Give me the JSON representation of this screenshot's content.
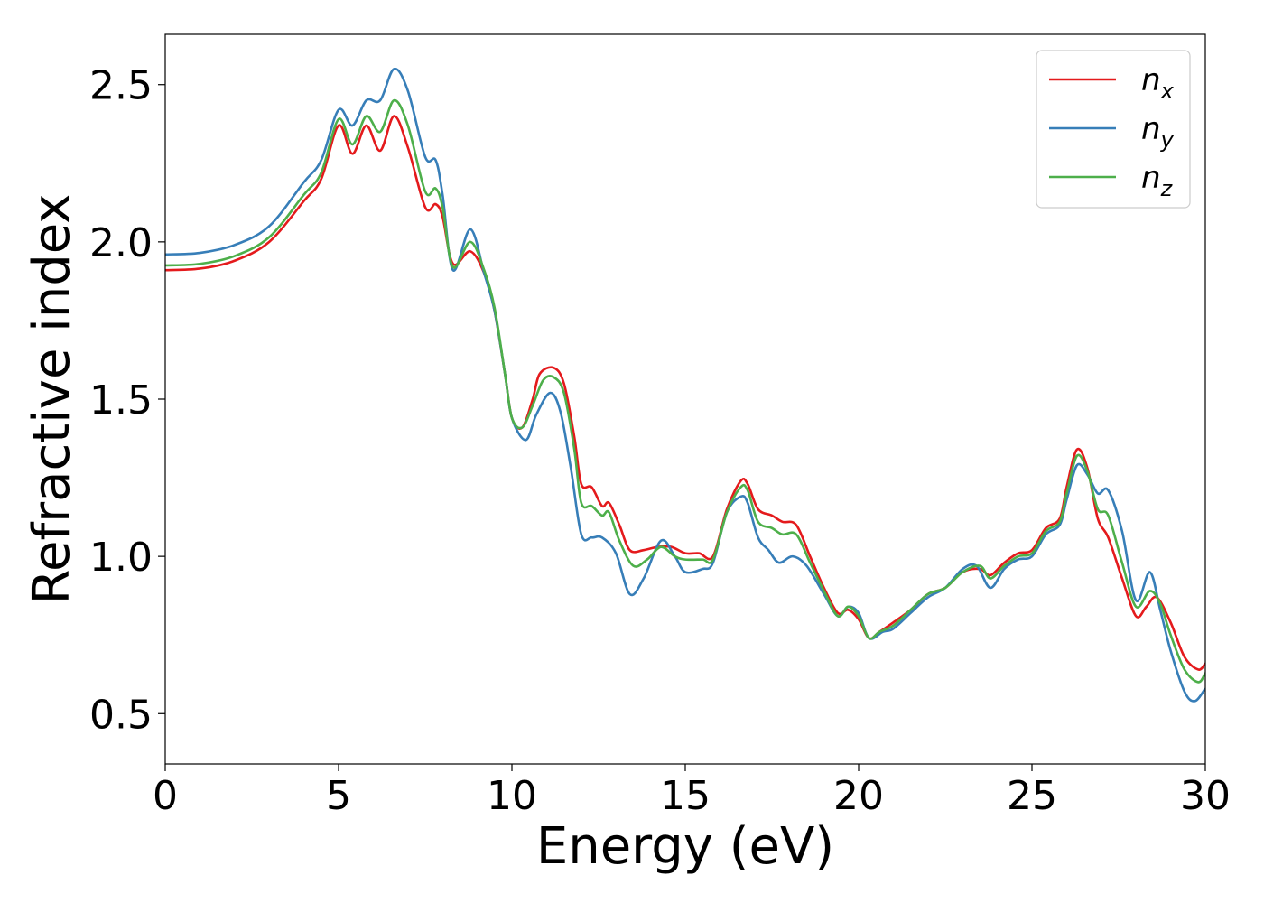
{
  "chart_data": {
    "type": "line",
    "title": "",
    "xlabel": "Energy (eV)",
    "ylabel": "Refractive index",
    "xlim": [
      0,
      30
    ],
    "ylim": [
      0.34,
      2.66
    ],
    "xticks": [
      0,
      5,
      10,
      15,
      20,
      25,
      30
    ],
    "yticks": [
      0.5,
      1.0,
      1.5,
      2.0,
      2.5
    ],
    "xtick_labels": [
      "0",
      "5",
      "10",
      "15",
      "20",
      "25",
      "30"
    ],
    "ytick_labels": [
      "0.5",
      "1.0",
      "1.5",
      "2.0",
      "2.5"
    ],
    "grid": false,
    "legend_position": "top-right",
    "series": [
      {
        "name": "n",
        "subscript": "x",
        "color": "#e41a1c",
        "points": [
          [
            0,
            1.91
          ],
          [
            1,
            1.915
          ],
          [
            2,
            1.94
          ],
          [
            3,
            2.0
          ],
          [
            4,
            2.13
          ],
          [
            4.5,
            2.2
          ],
          [
            5,
            2.37
          ],
          [
            5.4,
            2.28
          ],
          [
            5.8,
            2.37
          ],
          [
            6.2,
            2.29
          ],
          [
            6.6,
            2.4
          ],
          [
            7,
            2.3
          ],
          [
            7.5,
            2.11
          ],
          [
            7.8,
            2.12
          ],
          [
            8.0,
            2.08
          ],
          [
            8.3,
            1.93
          ],
          [
            8.8,
            1.97
          ],
          [
            9.2,
            1.9
          ],
          [
            9.5,
            1.78
          ],
          [
            9.8,
            1.58
          ],
          [
            10,
            1.44
          ],
          [
            10.3,
            1.41
          ],
          [
            10.6,
            1.5
          ],
          [
            10.8,
            1.58
          ],
          [
            11.2,
            1.6
          ],
          [
            11.5,
            1.55
          ],
          [
            11.8,
            1.38
          ],
          [
            12,
            1.23
          ],
          [
            12.3,
            1.22
          ],
          [
            12.6,
            1.16
          ],
          [
            12.8,
            1.17
          ],
          [
            13.1,
            1.1
          ],
          [
            13.4,
            1.02
          ],
          [
            13.8,
            1.02
          ],
          [
            14.2,
            1.03
          ],
          [
            14.6,
            1.03
          ],
          [
            15,
            1.01
          ],
          [
            15.4,
            1.01
          ],
          [
            15.8,
            1.0
          ],
          [
            16.2,
            1.15
          ],
          [
            16.6,
            1.24
          ],
          [
            16.8,
            1.23
          ],
          [
            17.1,
            1.15
          ],
          [
            17.5,
            1.13
          ],
          [
            17.8,
            1.11
          ],
          [
            18.2,
            1.1
          ],
          [
            18.6,
            1.0
          ],
          [
            19,
            0.9
          ],
          [
            19.4,
            0.82
          ],
          [
            19.7,
            0.83
          ],
          [
            20,
            0.8
          ],
          [
            20.3,
            0.74
          ],
          [
            20.6,
            0.76
          ],
          [
            21,
            0.79
          ],
          [
            21.5,
            0.83
          ],
          [
            22,
            0.88
          ],
          [
            22.5,
            0.9
          ],
          [
            23,
            0.95
          ],
          [
            23.5,
            0.96
          ],
          [
            23.8,
            0.94
          ],
          [
            24.2,
            0.98
          ],
          [
            24.6,
            1.01
          ],
          [
            25,
            1.02
          ],
          [
            25.4,
            1.09
          ],
          [
            25.8,
            1.12
          ],
          [
            26.0,
            1.22
          ],
          [
            26.3,
            1.34
          ],
          [
            26.6,
            1.28
          ],
          [
            26.9,
            1.12
          ],
          [
            27.2,
            1.06
          ],
          [
            27.6,
            0.93
          ],
          [
            28,
            0.81
          ],
          [
            28.3,
            0.84
          ],
          [
            28.6,
            0.87
          ],
          [
            29,
            0.79
          ],
          [
            29.4,
            0.68
          ],
          [
            29.8,
            0.64
          ],
          [
            30,
            0.66
          ]
        ]
      },
      {
        "name": "n",
        "subscript": "y",
        "color": "#377eb8",
        "points": [
          [
            0,
            1.96
          ],
          [
            1,
            1.965
          ],
          [
            2,
            1.99
          ],
          [
            3,
            2.05
          ],
          [
            4,
            2.19
          ],
          [
            4.5,
            2.26
          ],
          [
            5,
            2.42
          ],
          [
            5.4,
            2.37
          ],
          [
            5.8,
            2.45
          ],
          [
            6.2,
            2.45
          ],
          [
            6.6,
            2.55
          ],
          [
            7,
            2.48
          ],
          [
            7.5,
            2.27
          ],
          [
            7.8,
            2.26
          ],
          [
            8.0,
            2.15
          ],
          [
            8.3,
            1.91
          ],
          [
            8.8,
            2.04
          ],
          [
            9.2,
            1.9
          ],
          [
            9.5,
            1.78
          ],
          [
            9.8,
            1.58
          ],
          [
            10,
            1.44
          ],
          [
            10.4,
            1.37
          ],
          [
            10.7,
            1.45
          ],
          [
            11.1,
            1.52
          ],
          [
            11.4,
            1.46
          ],
          [
            11.7,
            1.28
          ],
          [
            12,
            1.07
          ],
          [
            12.3,
            1.06
          ],
          [
            12.6,
            1.06
          ],
          [
            13,
            1.01
          ],
          [
            13.4,
            0.88
          ],
          [
            13.8,
            0.93
          ],
          [
            14.3,
            1.05
          ],
          [
            14.7,
            1.0
          ],
          [
            15,
            0.95
          ],
          [
            15.5,
            0.96
          ],
          [
            15.8,
            0.98
          ],
          [
            16.2,
            1.14
          ],
          [
            16.6,
            1.19
          ],
          [
            16.8,
            1.17
          ],
          [
            17.1,
            1.06
          ],
          [
            17.4,
            1.02
          ],
          [
            17.7,
            0.98
          ],
          [
            18.1,
            1.0
          ],
          [
            18.5,
            0.97
          ],
          [
            19,
            0.88
          ],
          [
            19.4,
            0.81
          ],
          [
            19.7,
            0.84
          ],
          [
            20,
            0.82
          ],
          [
            20.3,
            0.74
          ],
          [
            20.7,
            0.76
          ],
          [
            21,
            0.77
          ],
          [
            21.5,
            0.82
          ],
          [
            22,
            0.87
          ],
          [
            22.5,
            0.9
          ],
          [
            23,
            0.96
          ],
          [
            23.4,
            0.97
          ],
          [
            23.8,
            0.9
          ],
          [
            24.2,
            0.96
          ],
          [
            24.6,
            0.99
          ],
          [
            25,
            1.0
          ],
          [
            25.4,
            1.07
          ],
          [
            25.8,
            1.1
          ],
          [
            26.0,
            1.18
          ],
          [
            26.3,
            1.29
          ],
          [
            26.6,
            1.26
          ],
          [
            26.9,
            1.2
          ],
          [
            27.2,
            1.21
          ],
          [
            27.6,
            1.08
          ],
          [
            28,
            0.86
          ],
          [
            28.4,
            0.95
          ],
          [
            28.7,
            0.83
          ],
          [
            29,
            0.7
          ],
          [
            29.4,
            0.57
          ],
          [
            29.7,
            0.54
          ],
          [
            30,
            0.58
          ]
        ]
      },
      {
        "name": "n",
        "subscript": "z",
        "color": "#4daf4a",
        "points": [
          [
            0,
            1.925
          ],
          [
            1,
            1.93
          ],
          [
            2,
            1.955
          ],
          [
            3,
            2.015
          ],
          [
            4,
            2.15
          ],
          [
            4.5,
            2.22
          ],
          [
            5,
            2.39
          ],
          [
            5.4,
            2.31
          ],
          [
            5.8,
            2.4
          ],
          [
            6.2,
            2.35
          ],
          [
            6.6,
            2.45
          ],
          [
            7,
            2.37
          ],
          [
            7.5,
            2.16
          ],
          [
            7.8,
            2.17
          ],
          [
            8.0,
            2.11
          ],
          [
            8.3,
            1.92
          ],
          [
            8.8,
            2.0
          ],
          [
            9.2,
            1.91
          ],
          [
            9.5,
            1.79
          ],
          [
            9.8,
            1.58
          ],
          [
            10,
            1.44
          ],
          [
            10.3,
            1.41
          ],
          [
            10.6,
            1.48
          ],
          [
            10.9,
            1.56
          ],
          [
            11.2,
            1.57
          ],
          [
            11.5,
            1.52
          ],
          [
            11.8,
            1.34
          ],
          [
            12,
            1.17
          ],
          [
            12.3,
            1.16
          ],
          [
            12.6,
            1.13
          ],
          [
            12.8,
            1.14
          ],
          [
            13.1,
            1.05
          ],
          [
            13.5,
            0.97
          ],
          [
            13.9,
            0.99
          ],
          [
            14.3,
            1.03
          ],
          [
            14.7,
            1.0
          ],
          [
            15,
            0.99
          ],
          [
            15.5,
            0.99
          ],
          [
            15.8,
            0.99
          ],
          [
            16.2,
            1.14
          ],
          [
            16.6,
            1.22
          ],
          [
            16.8,
            1.21
          ],
          [
            17.1,
            1.11
          ],
          [
            17.5,
            1.09
          ],
          [
            17.8,
            1.07
          ],
          [
            18.2,
            1.07
          ],
          [
            18.6,
            0.98
          ],
          [
            19,
            0.89
          ],
          [
            19.4,
            0.81
          ],
          [
            19.7,
            0.84
          ],
          [
            20,
            0.81
          ],
          [
            20.3,
            0.74
          ],
          [
            20.6,
            0.76
          ],
          [
            21,
            0.78
          ],
          [
            21.5,
            0.83
          ],
          [
            22,
            0.88
          ],
          [
            22.5,
            0.9
          ],
          [
            23,
            0.95
          ],
          [
            23.5,
            0.97
          ],
          [
            23.8,
            0.93
          ],
          [
            24.2,
            0.97
          ],
          [
            24.6,
            1.0
          ],
          [
            25,
            1.01
          ],
          [
            25.4,
            1.08
          ],
          [
            25.8,
            1.11
          ],
          [
            26.0,
            1.2
          ],
          [
            26.3,
            1.32
          ],
          [
            26.6,
            1.27
          ],
          [
            26.9,
            1.15
          ],
          [
            27.2,
            1.13
          ],
          [
            27.6,
            0.98
          ],
          [
            28,
            0.84
          ],
          [
            28.4,
            0.89
          ],
          [
            28.7,
            0.85
          ],
          [
            29,
            0.75
          ],
          [
            29.4,
            0.64
          ],
          [
            29.8,
            0.6
          ],
          [
            30,
            0.63
          ]
        ]
      }
    ]
  }
}
